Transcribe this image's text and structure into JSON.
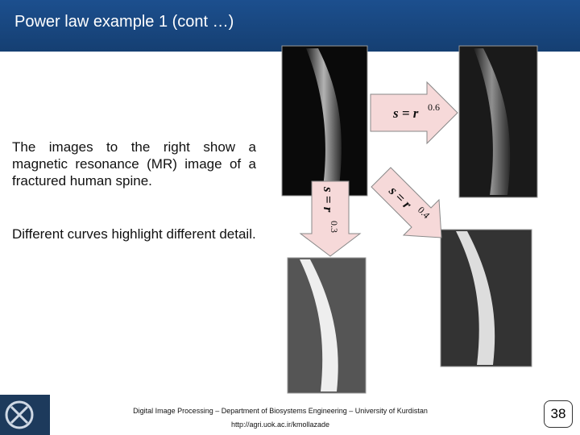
{
  "header": {
    "title": "Power law example 1 (cont …)"
  },
  "body": {
    "paragraphs": [
      "The images to the right show a magnetic resonance (MR) image of a fractured human spine.",
      "Different curves highlight different detail."
    ]
  },
  "formulas": [
    {
      "base": "s = r",
      "exponent": "0.6"
    },
    {
      "base": "s = r",
      "exponent": "0.4"
    },
    {
      "base": "s = r",
      "exponent": "0.3"
    }
  ],
  "footer": {
    "lines": [
      "Digital Image Processing – Department of Biosystems Engineering – University of Kurdistan",
      "http://agri.uok.ac.ir/kmollazade"
    ],
    "page_number": 38
  }
}
